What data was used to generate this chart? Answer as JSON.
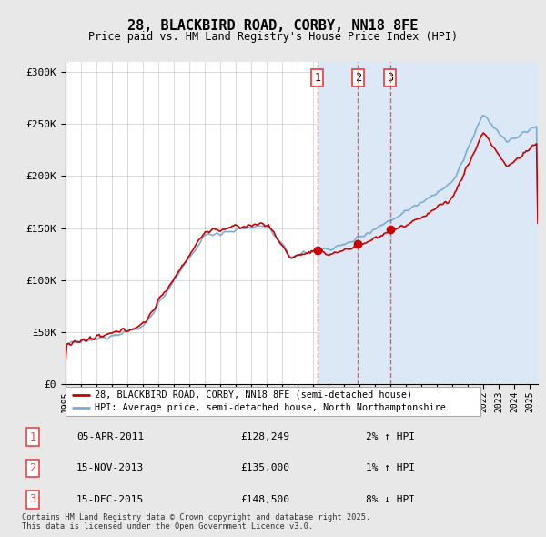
{
  "title": "28, BLACKBIRD ROAD, CORBY, NN18 8FE",
  "subtitle": "Price paid vs. HM Land Registry's House Price Index (HPI)",
  "ylim": [
    0,
    310000
  ],
  "yticks": [
    0,
    50000,
    100000,
    150000,
    200000,
    250000,
    300000
  ],
  "ytick_labels": [
    "£0",
    "£50K",
    "£100K",
    "£150K",
    "£200K",
    "£250K",
    "£300K"
  ],
  "background_color": "#e8e8e8",
  "plot_bg_color": "#ffffff",
  "shade_color": "#dce8f5",
  "grid_color": "#cccccc",
  "hpi_color": "#7dadd4",
  "price_color": "#cc0000",
  "vline_color": "#ee4444",
  "legend_text_price": "28, BLACKBIRD ROAD, CORBY, NN18 8FE (semi-detached house)",
  "legend_text_hpi": "HPI: Average price, semi-detached house, North Northamptonshire",
  "transactions": [
    {
      "num": 1,
      "date": "05-APR-2011",
      "price": 128249,
      "price_str": "£128,249",
      "change": "2% ↑ HPI",
      "x_year": 2011.27
    },
    {
      "num": 2,
      "date": "15-NOV-2013",
      "price": 135000,
      "price_str": "£135,000",
      "change": "1% ↑ HPI",
      "x_year": 2013.88
    },
    {
      "num": 3,
      "date": "15-DEC-2015",
      "price": 148500,
      "price_str": "£148,500",
      "change": "8% ↓ HPI",
      "x_year": 2015.96
    }
  ],
  "footer": "Contains HM Land Registry data © Crown copyright and database right 2025.\nThis data is licensed under the Open Government Licence v3.0.",
  "xmin": 1995,
  "xmax": 2025.5
}
